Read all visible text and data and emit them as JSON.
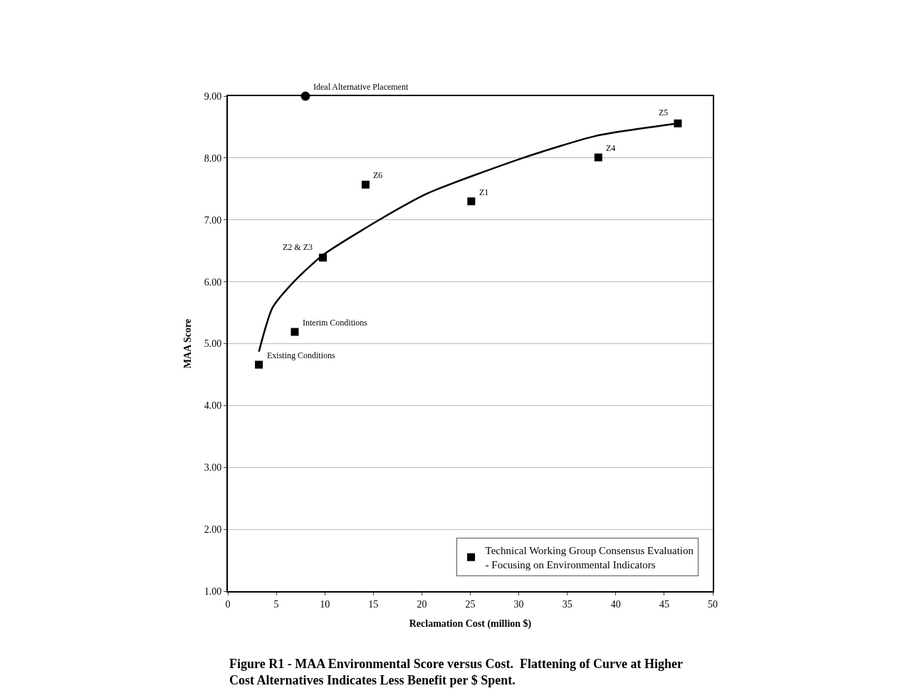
{
  "chart_data": {
    "type": "scatter",
    "xlabel": "Reclamation Cost (million $)",
    "ylabel": "MAA Score",
    "xlim": [
      0,
      50
    ],
    "xticks": [
      0,
      5,
      10,
      15,
      20,
      25,
      30,
      35,
      40,
      45,
      50
    ],
    "ylim": [
      1,
      9
    ],
    "yticks": [
      {
        "value": 1,
        "label": "1.00"
      },
      {
        "value": 2,
        "label": "2.00"
      },
      {
        "value": 3,
        "label": "3.00"
      },
      {
        "value": 4,
        "label": "4.00"
      },
      {
        "value": 5,
        "label": "5.00"
      },
      {
        "value": 6,
        "label": "6.00"
      },
      {
        "value": 7,
        "label": "7.00"
      },
      {
        "value": 8,
        "label": "8.00"
      },
      {
        "value": 9,
        "label": "9.00"
      }
    ],
    "grid": "y",
    "legend": "bottom right",
    "series": [
      {
        "name": "Technical Working Group Consensus Evaluation - Focusing on Environmental Indicators",
        "color": "#000000",
        "marker": "square",
        "x": [
          3.2,
          6.9,
          9.8,
          14.2,
          25.1,
          38.2,
          46.4
        ],
        "values": [
          4.66,
          5.19,
          6.39,
          7.57,
          7.3,
          8.01,
          8.56
        ]
      },
      {
        "color": "#000000",
        "marker": "circle",
        "x": [
          8
        ],
        "values": [
          9
        ]
      },
      {
        "type": "line",
        "color": "#000000",
        "marker": "none",
        "line_style": "solid",
        "x": [
          3.2,
          4.6,
          6.8,
          9.7,
          15.6,
          20.6,
          30.4,
          38,
          46.4
        ],
        "values": [
          4.87,
          5.58,
          6.0,
          6.42,
          7.0,
          7.43,
          8.0,
          8.36,
          8.56
        ]
      }
    ],
    "annotations": [
      {
        "text": "Ideal Alternative Placement",
        "x": 8,
        "y": 9
      },
      {
        "text": "Existing Conditions",
        "x": 3.2,
        "y": 4.66
      },
      {
        "text": "Interim Conditions",
        "x": 6.9,
        "y": 5.19
      },
      {
        "text": "Z2 & Z3",
        "x": 9.8,
        "y": 6.39
      },
      {
        "text": "Z6",
        "x": 14.2,
        "y": 7.57
      },
      {
        "text": "Z1",
        "x": 25.1,
        "y": 7.3
      },
      {
        "text": "Z4",
        "x": 38.2,
        "y": 8.01
      },
      {
        "text": "Z5",
        "x": 46.4,
        "y": 8.56
      },
      "Figure R1 - MAA Environmental Score versus Cost.  Flattening of Curve at Higher Cost Alternatives Indicates Less Benefit per $ Spent."
    ]
  }
}
